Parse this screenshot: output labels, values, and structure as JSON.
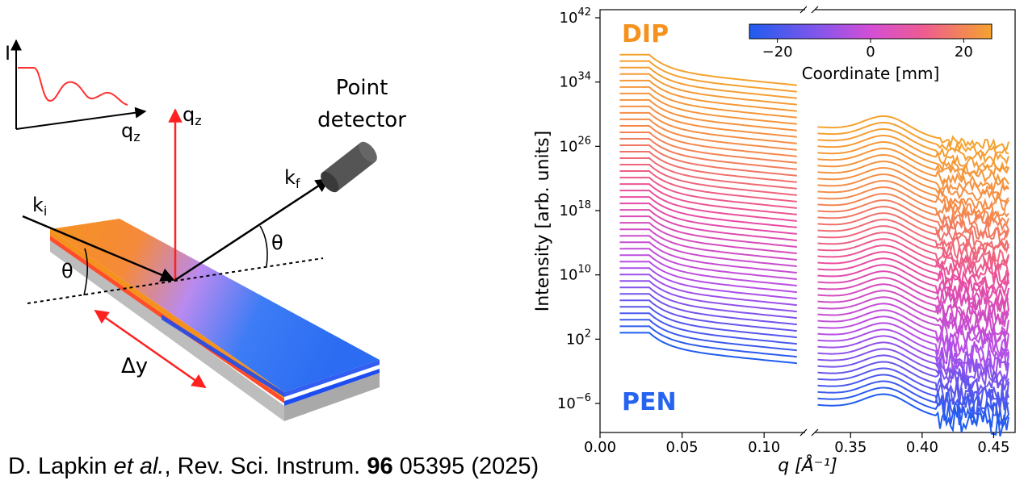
{
  "schematic": {
    "inset_i": "I",
    "inset_q": "q",
    "inset_q_sub": "z",
    "qz": "q",
    "qz_sub": "z",
    "ki": "k",
    "ki_sub": "i",
    "kf": "k",
    "kf_sub": "f",
    "theta_left": "θ",
    "theta_right": "θ",
    "detector_line1": "Point",
    "detector_line2": "detector",
    "delta_y": "Δy"
  },
  "colors": {
    "orange": "#f5921e",
    "magenta": "#d54ce0",
    "blue": "#2563f0",
    "red": "#ff2020",
    "gray": "#bdbdbd"
  },
  "chart_data": {
    "type": "line",
    "xlabel": "q [Å⁻¹]",
    "ylabel": "Intensity [arb. units]",
    "xaxis_segments": [
      {
        "range": [
          0.0,
          0.125
        ],
        "ticks": [
          "0.00",
          "0.05",
          "0.10"
        ],
        "tick_values": [
          0.0,
          0.05,
          0.1
        ]
      },
      {
        "range": [
          0.325,
          0.465
        ],
        "ticks": [
          "0.35",
          "0.40",
          "0.45"
        ],
        "tick_values": [
          0.35,
          0.4,
          0.45
        ]
      }
    ],
    "y_scale": "log",
    "ylim_exp": [
      -9,
      42
    ],
    "ytick_exponents": [
      42,
      34,
      26,
      18,
      10,
      2,
      -6
    ],
    "ytick_base": "10",
    "series_label_top": "DIP",
    "series_label_bottom": "PEN",
    "n_curves": 44,
    "coordinate_range_mm": [
      -26,
      26
    ],
    "colorbar": {
      "label": "Coordinate [mm]",
      "ticks": [
        "−20",
        "0",
        "20"
      ],
      "tick_values": [
        -20,
        0,
        20
      ],
      "colors": [
        "#1f5cf0",
        "#b64ee8",
        "#e94ca0",
        "#f58a4a",
        "#f5a22e"
      ]
    }
  },
  "caption": {
    "authors": "D. Lapkin",
    "etal": "et al.",
    "journal": ", Rev. Sci. Instrum. ",
    "volume": "96",
    "rest": " 05395 (2025)"
  }
}
